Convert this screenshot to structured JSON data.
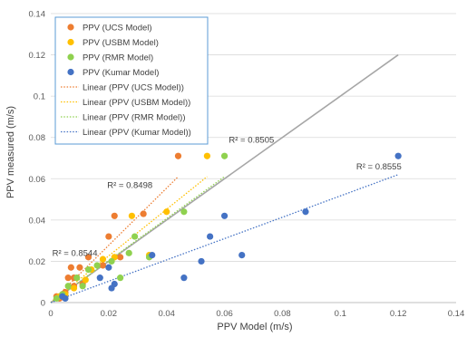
{
  "chart_data": {
    "type": "scatter",
    "xlabel": "PPV Model (m/s)",
    "ylabel": "PPV measured (m/s)",
    "xlim": [
      0,
      0.14
    ],
    "ylim": [
      0,
      0.14
    ],
    "xticks": [
      "0",
      "0.02",
      "0.04",
      "0.06",
      "0.08",
      "0.1",
      "0.12",
      "0.14"
    ],
    "yticks": [
      "0",
      "0.02",
      "0.04",
      "0.06",
      "0.08",
      "0.1",
      "0.12",
      "0.14"
    ],
    "grid": "horizontal",
    "legend_position": "top-left",
    "reference_line": {
      "x": [
        0,
        0.12
      ],
      "y": [
        0,
        0.12
      ],
      "color": "#A6A6A6"
    },
    "series": [
      {
        "name": "PPV (UCS Model)",
        "color": "#ED7D31",
        "points": [
          [
            0.002,
            0.003
          ],
          [
            0.003,
            0.002
          ],
          [
            0.005,
            0.005
          ],
          [
            0.006,
            0.012
          ],
          [
            0.007,
            0.017
          ],
          [
            0.008,
            0.008
          ],
          [
            0.008,
            0.012
          ],
          [
            0.01,
            0.017
          ],
          [
            0.011,
            0.009
          ],
          [
            0.013,
            0.022
          ],
          [
            0.018,
            0.018
          ],
          [
            0.02,
            0.032
          ],
          [
            0.022,
            0.042
          ],
          [
            0.024,
            0.022
          ],
          [
            0.032,
            0.043
          ],
          [
            0.044,
            0.071
          ]
        ],
        "trend": {
          "name": "Linear (PPV (UCS Model))",
          "x": [
            0.0,
            0.044
          ],
          "y": [
            0.0,
            0.061
          ],
          "r2_label": "R² = 0.8498",
          "r2_at": [
            0.0195,
            0.0555
          ]
        }
      },
      {
        "name": "PPV (USBM Model)",
        "color": "#FFC000",
        "points": [
          [
            0.003,
            0.003
          ],
          [
            0.005,
            0.004
          ],
          [
            0.008,
            0.007
          ],
          [
            0.012,
            0.011
          ],
          [
            0.014,
            0.016
          ],
          [
            0.018,
            0.021
          ],
          [
            0.022,
            0.022
          ],
          [
            0.028,
            0.042
          ],
          [
            0.034,
            0.023
          ],
          [
            0.04,
            0.044
          ],
          [
            0.054,
            0.071
          ]
        ],
        "trend": {
          "name": "Linear (PPV (USBM Model))",
          "x": [
            0.0,
            0.054
          ],
          "y": [
            0.0,
            0.061
          ],
          "r2_label": "",
          "r2_at": [
            0,
            0
          ]
        }
      },
      {
        "name": "PPV (RMR Model)",
        "color": "#8FD14F",
        "points": [
          [
            0.002,
            0.002
          ],
          [
            0.004,
            0.004
          ],
          [
            0.006,
            0.008
          ],
          [
            0.009,
            0.012
          ],
          [
            0.011,
            0.008
          ],
          [
            0.013,
            0.016
          ],
          [
            0.016,
            0.018
          ],
          [
            0.021,
            0.02
          ],
          [
            0.024,
            0.012
          ],
          [
            0.027,
            0.024
          ],
          [
            0.029,
            0.032
          ],
          [
            0.034,
            0.022
          ],
          [
            0.046,
            0.044
          ],
          [
            0.06,
            0.071
          ]
        ],
        "trend": {
          "name": "Linear (PPV (RMR Model))",
          "x": [
            0.0,
            0.06
          ],
          "y": [
            0.0,
            0.061
          ],
          "r2_label": "R² = 0.8505",
          "r2_at": [
            0.0615,
            0.0775
          ]
        }
      },
      {
        "name": "PPV (Kumar Model)",
        "color": "#4472C4",
        "points": [
          [
            0.004,
            0.003
          ],
          [
            0.005,
            0.002
          ],
          [
            0.017,
            0.012
          ],
          [
            0.02,
            0.017
          ],
          [
            0.021,
            0.007
          ],
          [
            0.022,
            0.009
          ],
          [
            0.035,
            0.023
          ],
          [
            0.046,
            0.012
          ],
          [
            0.052,
            0.02
          ],
          [
            0.055,
            0.032
          ],
          [
            0.06,
            0.042
          ],
          [
            0.066,
            0.023
          ],
          [
            0.088,
            0.044
          ],
          [
            0.12,
            0.071
          ]
        ],
        "trend": {
          "name": "Linear (PPV (Kumar Model))",
          "x": [
            0.0,
            0.12
          ],
          "y": [
            0.0,
            0.062
          ],
          "r2_label": "R² = 0.8555",
          "r2_at": [
            0.1055,
            0.0645
          ]
        }
      }
    ],
    "extra_annotations": [
      {
        "text": "R² = 0.8544",
        "at": [
          0.0005,
          0.0225
        ]
      }
    ]
  }
}
